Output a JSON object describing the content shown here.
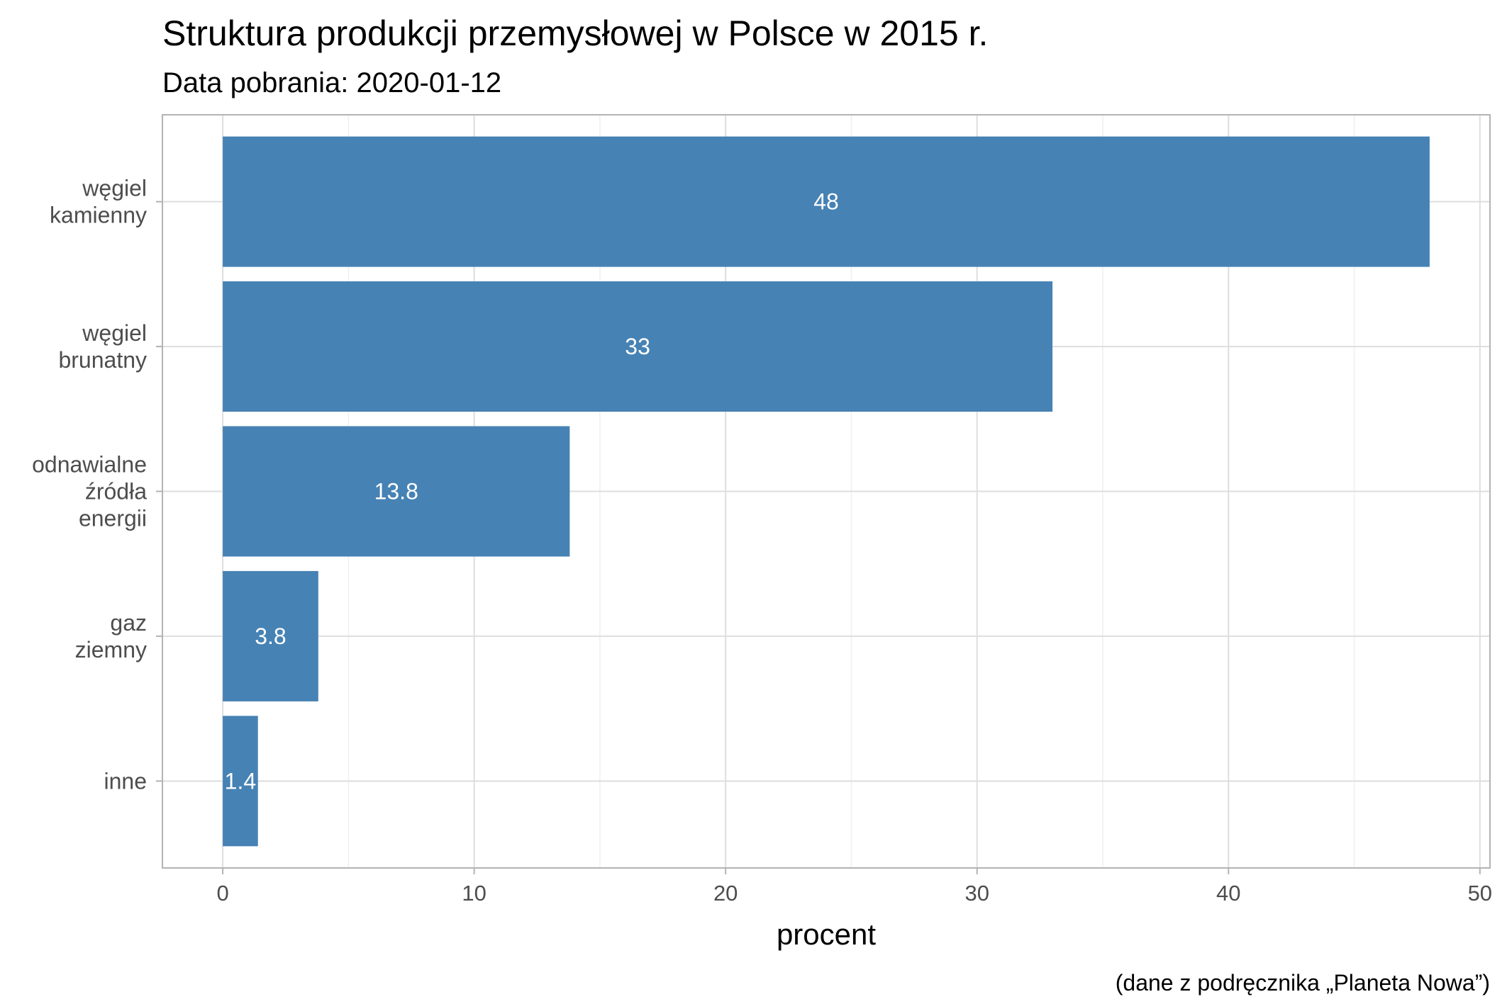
{
  "chart_data": {
    "type": "bar",
    "orientation": "horizontal",
    "title": "Struktura produkcji przemysłowej w Polsce w 2015 r.",
    "subtitle": "Data pobrania: 2020-01-12",
    "xlabel": "procent",
    "ylabel": "",
    "caption": "(dane z podręcznika „Planeta Nowa”)",
    "categories": [
      [
        "węgiel",
        "kamienny"
      ],
      [
        "węgiel",
        "brunatny"
      ],
      [
        "odnawialne",
        "źródła",
        "energii"
      ],
      [
        "gaz",
        "ziemny"
      ],
      [
        "inne"
      ]
    ],
    "values": [
      48,
      33,
      13.8,
      3.8,
      1.4
    ],
    "value_labels": [
      "48",
      "33",
      "13.8",
      "3.8",
      "1.4"
    ],
    "x_ticks": [
      0,
      10,
      20,
      30,
      40,
      50
    ],
    "xlim": [
      -2.4,
      50.4
    ],
    "grid": true,
    "bar_color": "#4682b4",
    "legend": "none"
  }
}
